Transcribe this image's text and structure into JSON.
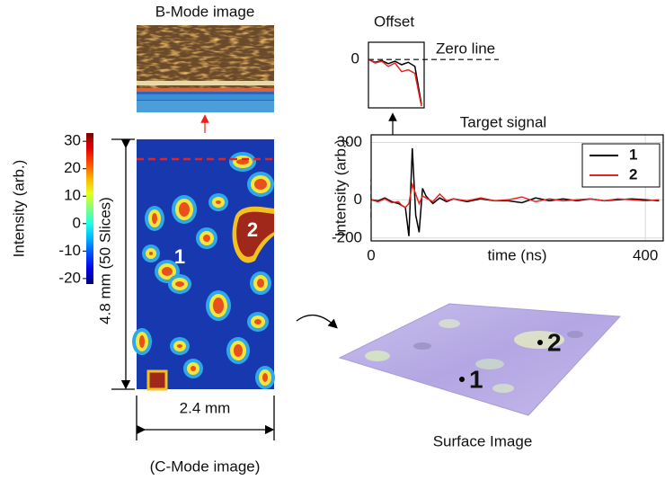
{
  "figure": {
    "bmode_title": "B-Mode image",
    "cmode_caption": "(C-Mode image)",
    "height_label": "4.8 mm (50 Slices)",
    "width_label": "2.4 mm",
    "cmode_markers": [
      "1",
      "2"
    ],
    "surface_caption": "Surface Image",
    "surface_markers": [
      "1",
      "2"
    ]
  },
  "chart_data": [
    {
      "type": "colorbar",
      "ylabel": "Intensity (arb.)",
      "colormap": "jet",
      "ylim": [
        -22,
        33
      ],
      "yticks": [
        30,
        20,
        10,
        0,
        -10,
        -20
      ]
    },
    {
      "type": "line",
      "title": "Target signal",
      "xlabel": "time (ns)",
      "ylabel": "Intensity (arb.)",
      "x": [
        0,
        10,
        20,
        30,
        40,
        45,
        50,
        55,
        60,
        65,
        70,
        75,
        80,
        90,
        100,
        110,
        120,
        140,
        160,
        180,
        200,
        220,
        240,
        260,
        280,
        300,
        320,
        340,
        360,
        380,
        400,
        420
      ],
      "series": [
        {
          "name": "1",
          "color": "#000000",
          "values": [
            0,
            -5,
            10,
            -10,
            -20,
            -30,
            -40,
            -190,
            270,
            -80,
            -170,
            60,
            20,
            -20,
            10,
            -10,
            5,
            -10,
            5,
            -5,
            -5,
            -15,
            10,
            -5,
            5,
            -5,
            5,
            -5,
            0,
            5,
            0,
            -5
          ]
        },
        {
          "name": "2",
          "color": "#e8231f",
          "values": [
            0,
            -10,
            5,
            -15,
            -10,
            -30,
            -40,
            -20,
            80,
            30,
            -20,
            20,
            10,
            -10,
            30,
            -5,
            5,
            -5,
            10,
            -5,
            0,
            15,
            -10,
            5,
            -5,
            0,
            5,
            -5,
            5,
            0,
            -5,
            0
          ]
        }
      ],
      "xlim": [
        0,
        426
      ],
      "ylim": [
        -215,
        340
      ],
      "xticks": [
        0,
        400
      ],
      "yticks": [
        300,
        0,
        -200
      ],
      "grid": true,
      "legend": "upper right"
    },
    {
      "type": "line",
      "title": "Offset",
      "annotation": "Zero line",
      "x": [
        0,
        5,
        10,
        15,
        20,
        25,
        30,
        35,
        40
      ],
      "series": [
        {
          "color": "#000000",
          "values": [
            0,
            -8,
            -3,
            -12,
            -5,
            -15,
            -8,
            -20,
            -130
          ]
        },
        {
          "color": "#e8231f",
          "values": [
            0,
            -10,
            -5,
            -20,
            -10,
            -35,
            -30,
            -40,
            -135
          ]
        }
      ],
      "xlim": [
        0,
        42
      ],
      "ylim": [
        -140,
        50
      ],
      "yticks": [
        0
      ]
    }
  ]
}
